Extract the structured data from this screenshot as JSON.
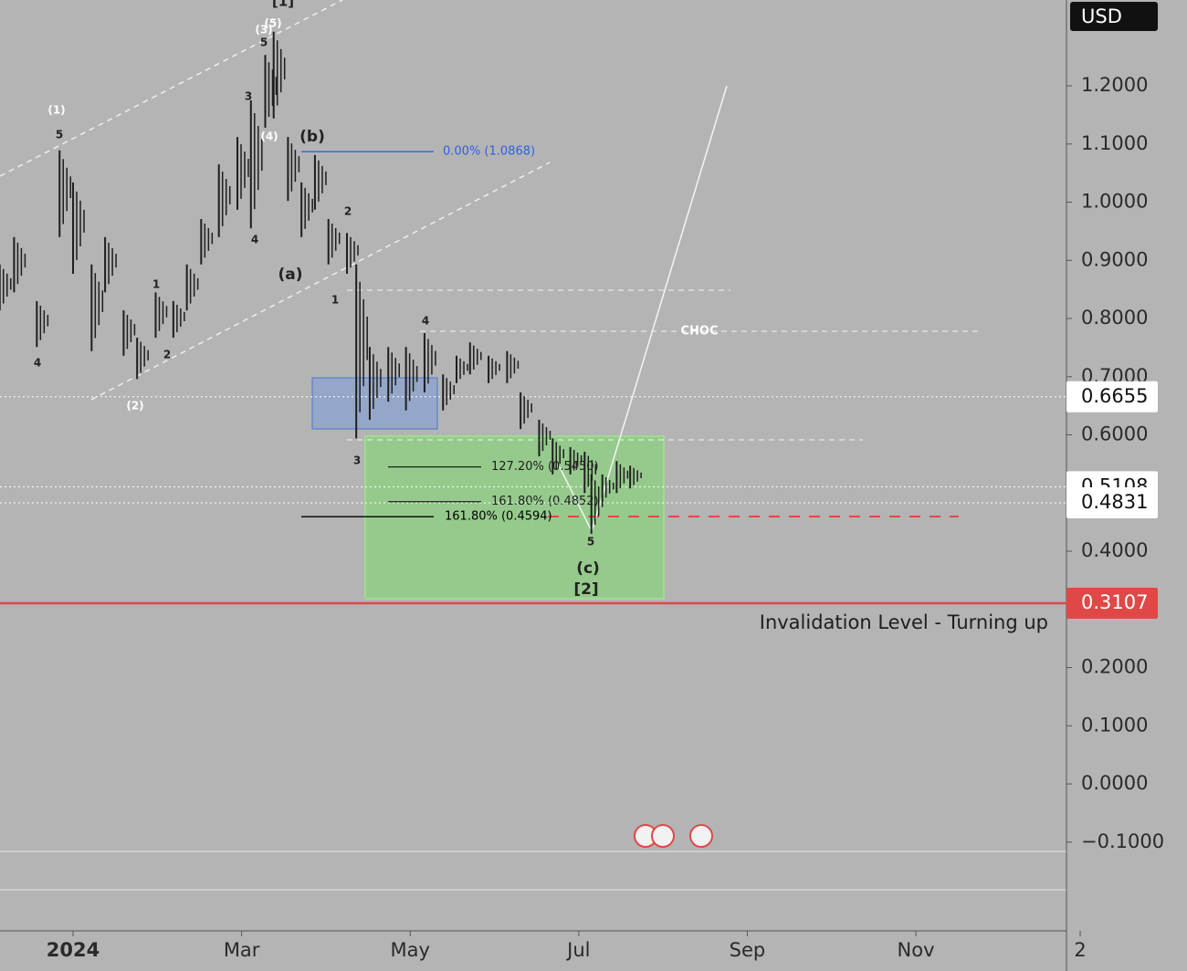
{
  "chart_data": {
    "type": "ohlc",
    "currency": "USD",
    "color": "#1e1e1e",
    "x": [
      -0.87,
      -0.7,
      -0.43,
      -0.16,
      0,
      0.22,
      0.38,
      0.6,
      0.76,
      0.98,
      1.19,
      1.35,
      1.52,
      1.73,
      1.95,
      2.11,
      2.28,
      2.38,
      2.55,
      2.71,
      2.87,
      3.03,
      3.25,
      3.36,
      3.52,
      3.74,
      3.95,
      4.17,
      4.39,
      4.55,
      4.71,
      4.93,
      5.15,
      5.31,
      5.53,
      5.69,
      5.9,
      6.07,
      6.15,
      6.28,
      6.45,
      6.61
    ],
    "high": [
      0.893,
      0.94,
      0.83,
      1.089,
      1.034,
      0.893,
      0.94,
      0.814,
      0.767,
      0.845,
      0.83,
      0.893,
      0.971,
      1.065,
      1.112,
      1.175,
      1.253,
      1.293,
      1.112,
      1.034,
      1.081,
      0.971,
      0.947,
      0.893,
      0.751,
      0.751,
      0.751,
      0.775,
      0.704,
      0.736,
      0.759,
      0.736,
      0.744,
      0.673,
      0.626,
      0.594,
      0.579,
      0.571,
      0.532,
      0.532,
      0.555,
      0.547
    ],
    "low": [
      0.814,
      0.845,
      0.751,
      0.94,
      0.877,
      0.744,
      0.845,
      0.736,
      0.696,
      0.767,
      0.767,
      0.814,
      0.893,
      0.94,
      0.987,
      0.955,
      1.128,
      1.144,
      1.002,
      0.94,
      0.987,
      0.893,
      0.877,
      0.594,
      0.626,
      0.657,
      0.642,
      0.673,
      0.642,
      0.689,
      0.704,
      0.689,
      0.689,
      0.61,
      0.563,
      0.532,
      0.532,
      0.5,
      0.43,
      0.485,
      0.5,
      0.508
    ],
    "xlim": [
      -0.867,
      11.787
    ],
    "xticks": [
      {
        "value": 0,
        "label": "2024"
      },
      {
        "value": 2,
        "label": "Mar"
      },
      {
        "value": 4,
        "label": "May"
      },
      {
        "value": 6,
        "label": "Jul"
      },
      {
        "value": 8,
        "label": "Sep"
      },
      {
        "value": 10,
        "label": "Nov"
      },
      {
        "value": 11.95,
        "label": "2"
      }
    ],
    "ylim": [
      -0.2525,
      1.3475
    ],
    "yticks": [
      {
        "value": -0.1,
        "label": "−0.1000"
      },
      {
        "value": 0,
        "label": "0.0000"
      },
      {
        "value": 0.1,
        "label": "0.1000"
      },
      {
        "value": 0.2,
        "label": "0.2000"
      },
      {
        "value": 0.4,
        "label": "0.4000"
      },
      {
        "value": 0.6,
        "label": "0.6000"
      },
      {
        "value": 0.7,
        "label": "0.7000"
      },
      {
        "value": 0.8,
        "label": "0.8000"
      },
      {
        "value": 0.9,
        "label": "0.9000"
      },
      {
        "value": 1.0,
        "label": "1.0000"
      },
      {
        "value": 1.1,
        "label": "1.1000"
      },
      {
        "value": 1.2,
        "label": "1.2000"
      }
    ],
    "price_lines": [
      {
        "value": 0.6655,
        "color": "#ffffff"
      },
      {
        "value": 0.5108,
        "color": "#ffffff"
      },
      {
        "value": 0.4831,
        "color": "#ffffff"
      },
      {
        "value": 0.3107,
        "color": "#e04848"
      }
    ],
    "levels": [
      {
        "value": 1.0868,
        "label": "0.00% (1.0868)",
        "color": "#2f5fe0"
      },
      {
        "value": 0.545,
        "label": "127.20% (0.5450)",
        "color": "#1e1e1e"
      },
      {
        "value": 0.4852,
        "label": "161.80% (0.4852)",
        "color": "#1e1e1e"
      },
      {
        "value": 0.4594,
        "label": "161.80% (0.4594)",
        "color": "#000000"
      }
    ],
    "annotations": [
      "CHOC",
      "Invalidation Level - Turning up"
    ],
    "wave_labels": [
      "[1]",
      "(5)",
      "(3)",
      "5",
      "3",
      "(4)",
      "4",
      "(1)",
      "5",
      "4",
      "1",
      "2",
      "(2)",
      "(b)",
      "(a)",
      "2",
      "1",
      "4",
      "3",
      "5",
      "(c)",
      "[2]"
    ]
  }
}
